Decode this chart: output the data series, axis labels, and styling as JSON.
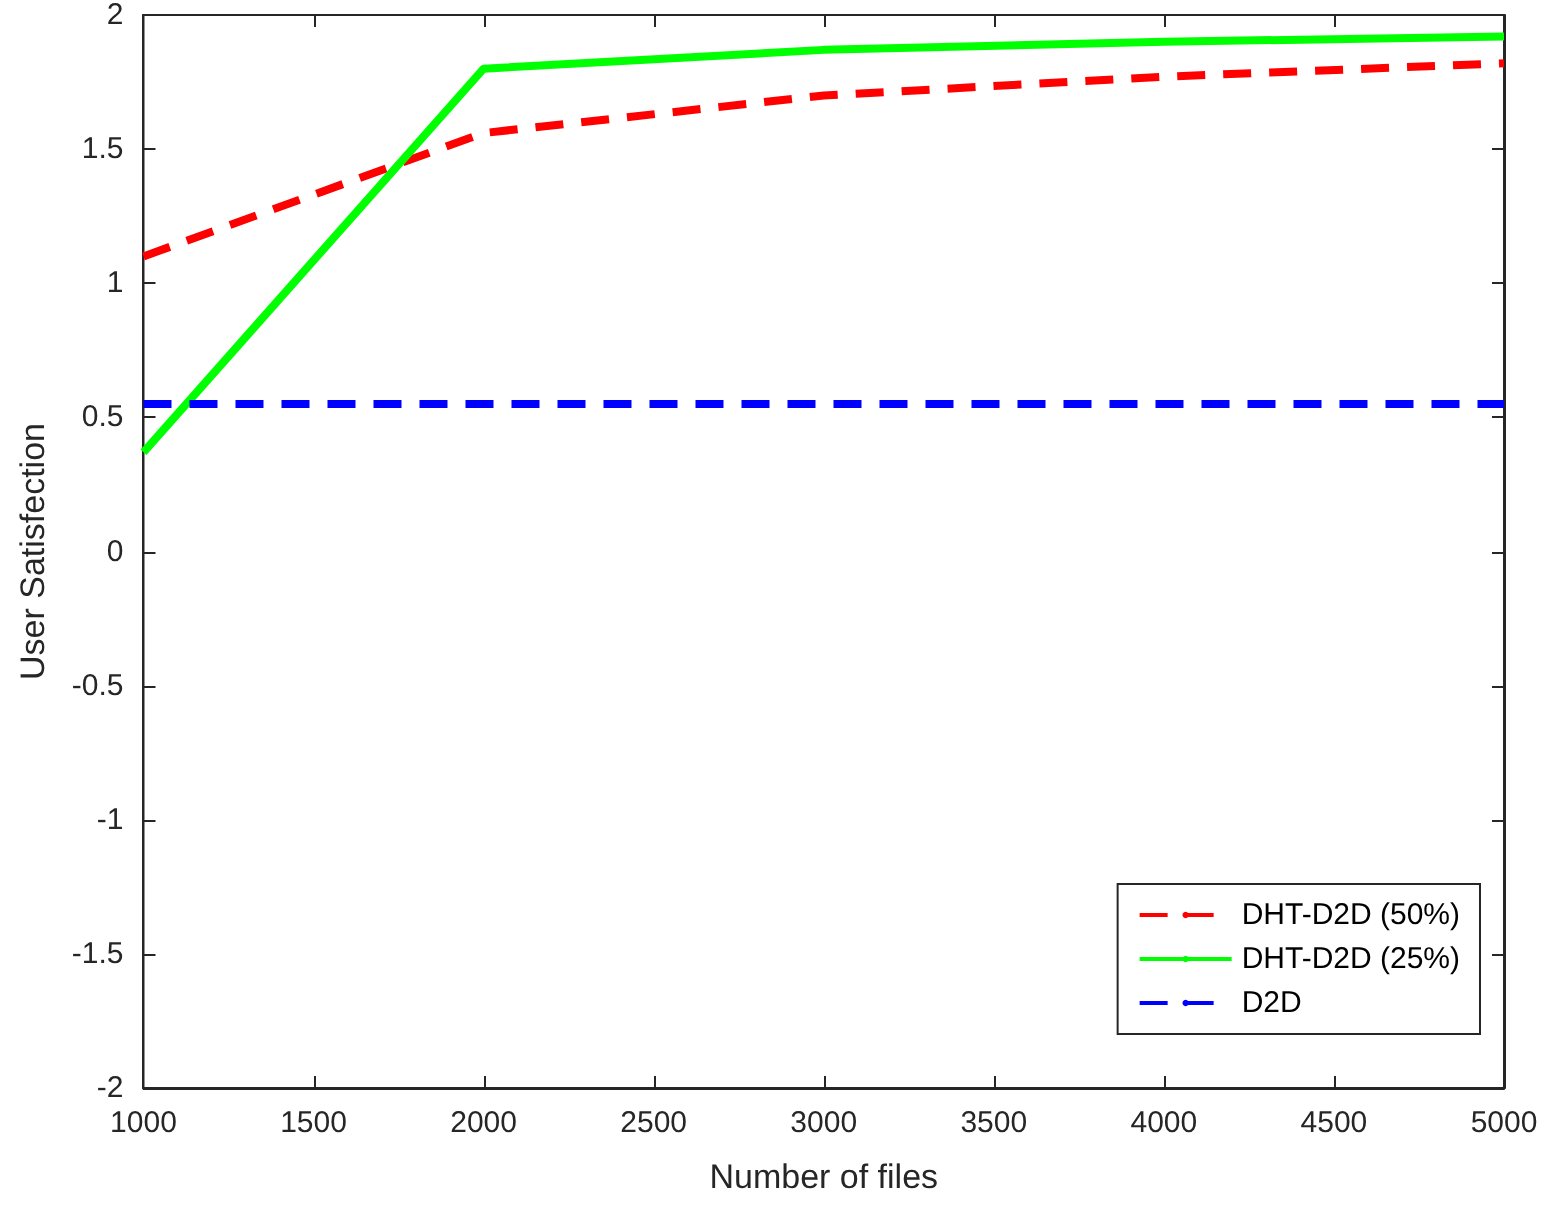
{
  "chart_data": {
    "type": "line",
    "xlabel": "Number of files",
    "ylabel": "User Satisfection",
    "x": [
      1000,
      2000,
      3000,
      4000,
      5000
    ],
    "series": [
      {
        "name": "DHT-D2D (50%)",
        "color": "#ff0000",
        "line_style": "dashed",
        "values": [
          1.1,
          1.56,
          1.7,
          1.77,
          1.82
        ]
      },
      {
        "name": "DHT-D2D (25%)",
        "color": "#00ff00",
        "line_style": "solid",
        "values": [
          0.37,
          1.8,
          1.87,
          1.9,
          1.92
        ]
      },
      {
        "name": "D2D",
        "color": "#0000ff",
        "line_style": "dashed",
        "values": [
          0.55,
          0.55,
          0.55,
          0.55,
          0.55
        ]
      }
    ],
    "xlim": [
      1000,
      5000
    ],
    "xticks": [
      1000,
      1500,
      2000,
      2500,
      3000,
      3500,
      4000,
      4500,
      5000
    ],
    "ylim": [
      -2,
      2
    ],
    "yticks": [
      -2,
      -1.5,
      -1,
      -0.5,
      0,
      0.5,
      1,
      1.5,
      2
    ],
    "grid": false,
    "legend": "bottom right",
    "marker": "none"
  }
}
